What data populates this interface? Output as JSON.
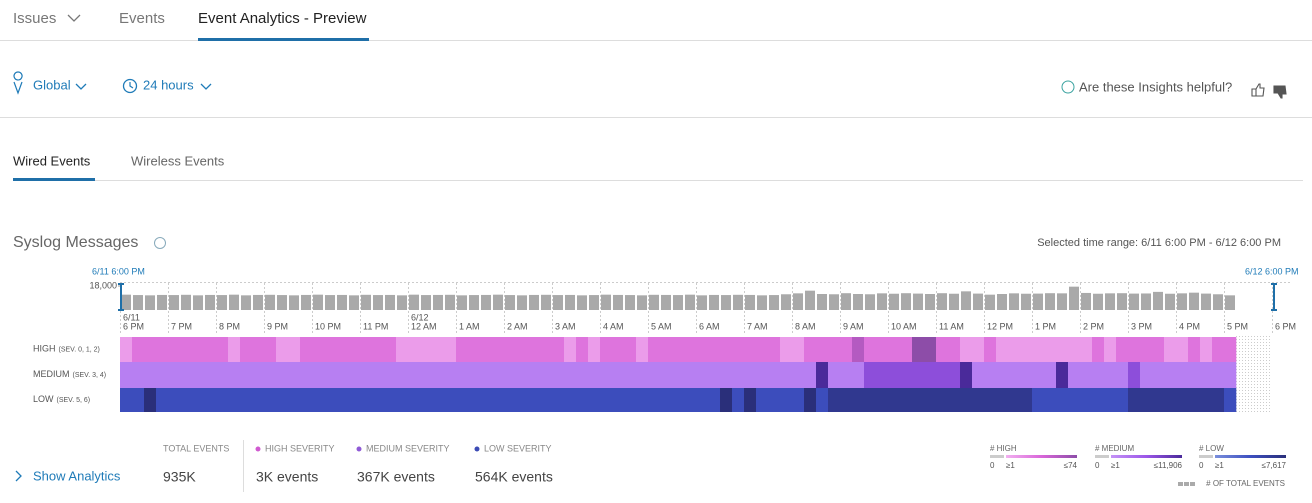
{
  "nav": {
    "tabs": [
      "Issues",
      "Events",
      "Event Analytics - Preview"
    ]
  },
  "filters": {
    "location": "Global",
    "time_range": "24 hours",
    "feedback": "Are these Insights helpful?"
  },
  "sub_tabs": [
    "Wired Events",
    "Wireless Events"
  ],
  "chart_data": [
    {
      "type": "bar",
      "title": "Syslog Messages",
      "subtitle": "Selected time range: 6/11 6:00 PM - 6/12 6:00 PM",
      "range_start": "6/11 6:00 PM",
      "range_end": "6/12 6:00 PM",
      "color": "#a9a9a9",
      "ylim": [
        0,
        18000
      ],
      "yticks": [
        {
          "value": 18000,
          "label": "18,000"
        }
      ],
      "x_labels": [
        {
          "date": "6/11",
          "time": "6 PM"
        },
        "7 PM",
        "8 PM",
        "9 PM",
        "10 PM",
        "11 PM",
        {
          "date": "6/12",
          "time": "12 AM"
        },
        "1 AM",
        "2 AM",
        "3 AM",
        "4 AM",
        "5 AM",
        "6 AM",
        "7 AM",
        "8 AM",
        "9 AM",
        "10 AM",
        "11 AM",
        "12 PM",
        "1 PM",
        "2 PM",
        "3 PM",
        "4 PM",
        "5 PM",
        "6 PM"
      ],
      "values": [
        11500,
        11200,
        11000,
        11300,
        11200,
        11400,
        11000,
        11300,
        11200,
        11500,
        11000,
        11300,
        11400,
        11200,
        11000,
        11300,
        11500,
        11200,
        11300,
        11000,
        11400,
        11200,
        11300,
        11000,
        11500,
        11200,
        11300,
        11400,
        11000,
        11200,
        11300,
        11500,
        11200,
        11000,
        11300,
        11400,
        11200,
        11300,
        11000,
        11200,
        11500,
        11300,
        11200,
        11000,
        11400,
        11300,
        11200,
        11500,
        11000,
        11300,
        11200,
        11400,
        11300,
        11000,
        11200,
        11800,
        12500,
        14500,
        12000,
        11800,
        12600,
        12000,
        11800,
        12500,
        12200,
        12600,
        12300,
        12000,
        12600,
        12200,
        14000,
        12300,
        11500,
        12000,
        12500,
        12200,
        12300,
        12600,
        12500,
        17500,
        12800,
        12200,
        12500,
        12600,
        12300,
        12400,
        13600,
        12200,
        12500,
        13000,
        12300,
        11800,
        11000
      ]
    },
    {
      "type": "heatmap",
      "footnote": "# OF TOTAL EVENTS",
      "rows": [
        {
          "name": "HIGH",
          "note": "(SEV. 0, 1, 2)",
          "colors": [
            "#f2b0f0",
            "#d966d9",
            "#8d4da8"
          ],
          "scale": {
            "title": "# HIGH",
            "ticks": [
              0,
              {
                "value": 1,
                "label": "≥1"
              },
              {
                "value": 74,
                "label": "≤74"
              }
            ]
          },
          "values": [
            10,
            30,
            30,
            30,
            30,
            30,
            30,
            30,
            30,
            10,
            30,
            30,
            30,
            10,
            10,
            30,
            30,
            30,
            30,
            30,
            30,
            30,
            30,
            10,
            10,
            10,
            10,
            10,
            30,
            30,
            30,
            30,
            30,
            30,
            30,
            30,
            30,
            10,
            30,
            10,
            30,
            30,
            30,
            10,
            30,
            30,
            30,
            30,
            30,
            30,
            30,
            30,
            30,
            30,
            30,
            10,
            10,
            30,
            30,
            30,
            30,
            55,
            30,
            30,
            30,
            30,
            74,
            74,
            30,
            30,
            10,
            10,
            30,
            10,
            10,
            10,
            10,
            10,
            10,
            10,
            10,
            30,
            10,
            30,
            30,
            30,
            30,
            10,
            10,
            30,
            10,
            30,
            30
          ]
        },
        {
          "name": "MEDIUM",
          "note": "(SEV. 3, 4)",
          "colors": [
            "#c593f7",
            "#9b56e8",
            "#4a2a9a"
          ],
          "scale": {
            "title": "# MEDIUM",
            "ticks": [
              0,
              {
                "value": 1,
                "label": "≥1"
              },
              {
                "value": 11906,
                "label": "≤11,906"
              }
            ]
          },
          "values": [
            2000,
            2000,
            2000,
            2000,
            2000,
            2000,
            2000,
            2000,
            2000,
            2000,
            2000,
            2000,
            2000,
            2000,
            2000,
            2000,
            2000,
            2000,
            2000,
            2000,
            2000,
            2000,
            2000,
            2000,
            2000,
            2000,
            2000,
            2000,
            2000,
            2000,
            2000,
            2000,
            2000,
            2000,
            2000,
            2000,
            2000,
            2000,
            2000,
            2000,
            2000,
            2000,
            2000,
            2000,
            2000,
            2000,
            2000,
            2000,
            2000,
            2000,
            2000,
            2000,
            2000,
            2000,
            2000,
            2000,
            2000,
            2000,
            11906,
            2000,
            2000,
            2000,
            7000,
            7000,
            7000,
            7000,
            7000,
            7000,
            7000,
            7000,
            11906,
            2000,
            2000,
            2000,
            2000,
            2000,
            2000,
            2000,
            11906,
            2000,
            2000,
            2000,
            2000,
            2000,
            7000,
            2000,
            2000,
            2000,
            2000,
            2000,
            2000,
            2000,
            2000
          ]
        },
        {
          "name": "LOW",
          "note": "(SEV. 5, 6)",
          "colors": [
            "#7a8fdc",
            "#3d4fc0",
            "#2a2f7a"
          ],
          "scale": {
            "title": "# LOW",
            "ticks": [
              0,
              {
                "value": 1,
                "label": "≥1"
              },
              {
                "value": 7617,
                "label": "≤7,617"
              }
            ]
          },
          "values": [
            4000,
            4000,
            7617,
            4000,
            4000,
            4000,
            4000,
            4000,
            4000,
            4000,
            4000,
            4000,
            4000,
            4000,
            4000,
            4000,
            4000,
            4000,
            4000,
            4000,
            4000,
            4000,
            4000,
            4000,
            4000,
            4000,
            4000,
            4000,
            4000,
            4000,
            4000,
            4000,
            4000,
            4000,
            4000,
            4000,
            4000,
            4000,
            4000,
            4000,
            4000,
            4000,
            4000,
            4000,
            4000,
            4000,
            4000,
            4000,
            4000,
            4000,
            7617,
            4000,
            7617,
            4000,
            4000,
            4000,
            4000,
            7617,
            4000,
            6500,
            6500,
            6500,
            6500,
            6500,
            6500,
            6500,
            6500,
            6500,
            6500,
            6500,
            6500,
            6500,
            6500,
            6500,
            6500,
            6500,
            4000,
            4000,
            4000,
            4000,
            4000,
            4000,
            4000,
            4000,
            6500,
            6500,
            6500,
            6500,
            6500,
            6500,
            6500,
            6500,
            4000
          ]
        }
      ]
    }
  ],
  "summary": {
    "action": "Show Analytics",
    "items": [
      {
        "label": "TOTAL EVENTS",
        "value": "935K"
      },
      {
        "label": "HIGH SEVERITY",
        "value": "3K events",
        "dot": "#d05ad0"
      },
      {
        "label": "MEDIUM SEVERITY",
        "value": "367K events",
        "dot": "#8f5ad6"
      },
      {
        "label": "LOW SEVERITY",
        "value": "564K events",
        "dot": "#3c4bb5"
      }
    ]
  }
}
